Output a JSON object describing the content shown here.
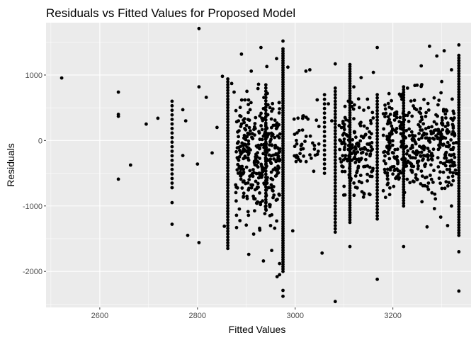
{
  "chart_data": {
    "type": "scatter",
    "title": "Residuals vs Fitted Values for Proposed Model",
    "xlabel": "Fitted Values",
    "ylabel": "Residuals",
    "xlim": [
      2490,
      3360
    ],
    "ylim": [
      -2550,
      1800
    ],
    "x_ticks": [
      2600,
      2800,
      3000,
      3200
    ],
    "y_ticks": [
      -2000,
      -1000,
      0,
      1000
    ],
    "x_tick_labels": [
      "2600",
      "2800",
      "3000",
      "3200"
    ],
    "y_tick_labels": [
      "-2000",
      "-1000",
      "0",
      "1000"
    ],
    "grid": true,
    "colors": {
      "panel": "#ebebeb",
      "grid_major": "#ffffff",
      "point": "#000000"
    },
    "points": [
      [
        2522,
        955
      ],
      [
        2638,
        740
      ],
      [
        2638,
        400
      ],
      [
        2638,
        370
      ],
      [
        2638,
        -590
      ],
      [
        2663,
        -375
      ],
      [
        2695,
        250
      ],
      [
        2719,
        340
      ],
      [
        2780,
        -1450
      ],
      [
        2803,
        1710
      ],
      [
        2803,
        820
      ],
      [
        2803,
        -1560
      ],
      [
        2818,
        660
      ],
      [
        2748,
        -1280
      ],
      [
        2748,
        -950
      ],
      [
        2748,
        -720
      ],
      [
        2770,
        470
      ],
      [
        2770,
        -230
      ],
      [
        2776,
        300
      ],
      [
        2800,
        -360
      ],
      [
        2830,
        -190
      ],
      [
        2840,
        200
      ],
      [
        2851,
        980
      ],
      [
        2855,
        -1310
      ],
      [
        2870,
        870
      ],
      [
        2875,
        740
      ],
      [
        2880,
        -1330
      ],
      [
        2884,
        300
      ],
      [
        2890,
        1320
      ],
      [
        2905,
        -1740
      ],
      [
        2910,
        1060
      ],
      [
        2915,
        -1430
      ],
      [
        2925,
        860
      ],
      [
        2930,
        1420
      ],
      [
        2935,
        -1840
      ],
      [
        2942,
        1130
      ],
      [
        2952,
        -1680
      ],
      [
        2958,
        -1340
      ],
      [
        2962,
        1250
      ],
      [
        2968,
        -1880
      ],
      [
        2975,
        1520
      ],
      [
        2975,
        -2290
      ],
      [
        2975,
        -2380
      ],
      [
        2968,
        -2050
      ],
      [
        2963,
        -2080
      ],
      [
        2985,
        1120
      ],
      [
        2995,
        -1380
      ],
      [
        3003,
        -260
      ],
      [
        3010,
        -200
      ],
      [
        3015,
        160
      ],
      [
        3022,
        1060
      ],
      [
        3030,
        1080
      ],
      [
        3038,
        -470
      ],
      [
        3045,
        620
      ],
      [
        3055,
        -1720
      ],
      [
        3068,
        560
      ],
      [
        3075,
        300
      ],
      [
        3082,
        1170
      ],
      [
        3082,
        -2460
      ],
      [
        3090,
        230
      ],
      [
        3100,
        -700
      ],
      [
        3112,
        -1620
      ],
      [
        3112,
        1160
      ],
      [
        3120,
        820
      ],
      [
        3135,
        960
      ],
      [
        3150,
        500
      ],
      [
        3160,
        1040
      ],
      [
        3168,
        1420
      ],
      [
        3168,
        -2120
      ],
      [
        3185,
        -870
      ],
      [
        3195,
        400
      ],
      [
        3208,
        350
      ],
      [
        3222,
        -1620
      ],
      [
        3230,
        800
      ],
      [
        3245,
        840
      ],
      [
        3258,
        1140
      ],
      [
        3270,
        -1320
      ],
      [
        3275,
        1440
      ],
      [
        3285,
        -1040
      ],
      [
        3290,
        1290
      ],
      [
        3298,
        -1170
      ],
      [
        3305,
        1370
      ],
      [
        3312,
        -1300
      ],
      [
        3320,
        1080
      ],
      [
        3335,
        1460
      ],
      [
        3335,
        -2300
      ],
      [
        3335,
        -1700
      ],
      [
        3320,
        -1000
      ],
      [
        3300,
        900
      ],
      [
        3280,
        -800
      ]
    ],
    "columns": [
      {
        "x": 2748,
        "lo": -720,
        "hi": 600,
        "n": 20
      },
      {
        "x": 2862,
        "lo": -1650,
        "hi": 940,
        "n": 60
      },
      {
        "x": 2940,
        "lo": -1050,
        "hi": 850,
        "n": 40
      },
      {
        "x": 2975,
        "lo": -2000,
        "hi": 1400,
        "n": 95
      },
      {
        "x": 3060,
        "lo": -500,
        "hi": 700,
        "n": 18
      },
      {
        "x": 3082,
        "lo": -1400,
        "hi": 800,
        "n": 45
      },
      {
        "x": 3112,
        "lo": -1250,
        "hi": 1130,
        "n": 65
      },
      {
        "x": 3168,
        "lo": -1200,
        "hi": 700,
        "n": 40
      },
      {
        "x": 3222,
        "lo": -1000,
        "hi": 820,
        "n": 45
      },
      {
        "x": 3335,
        "lo": -1450,
        "hi": 1300,
        "n": 70
      }
    ],
    "clusters": [
      {
        "x0": 2878,
        "x1": 2970,
        "lo": -1550,
        "hi": 1050,
        "n": 350
      },
      {
        "x0": 3090,
        "x1": 3160,
        "lo": -1100,
        "hi": 850,
        "n": 160
      },
      {
        "x0": 3180,
        "x1": 3330,
        "lo": -1250,
        "hi": 1000,
        "n": 420
      },
      {
        "x0": 2995,
        "x1": 3050,
        "lo": -650,
        "hi": 700,
        "n": 40
      }
    ]
  }
}
